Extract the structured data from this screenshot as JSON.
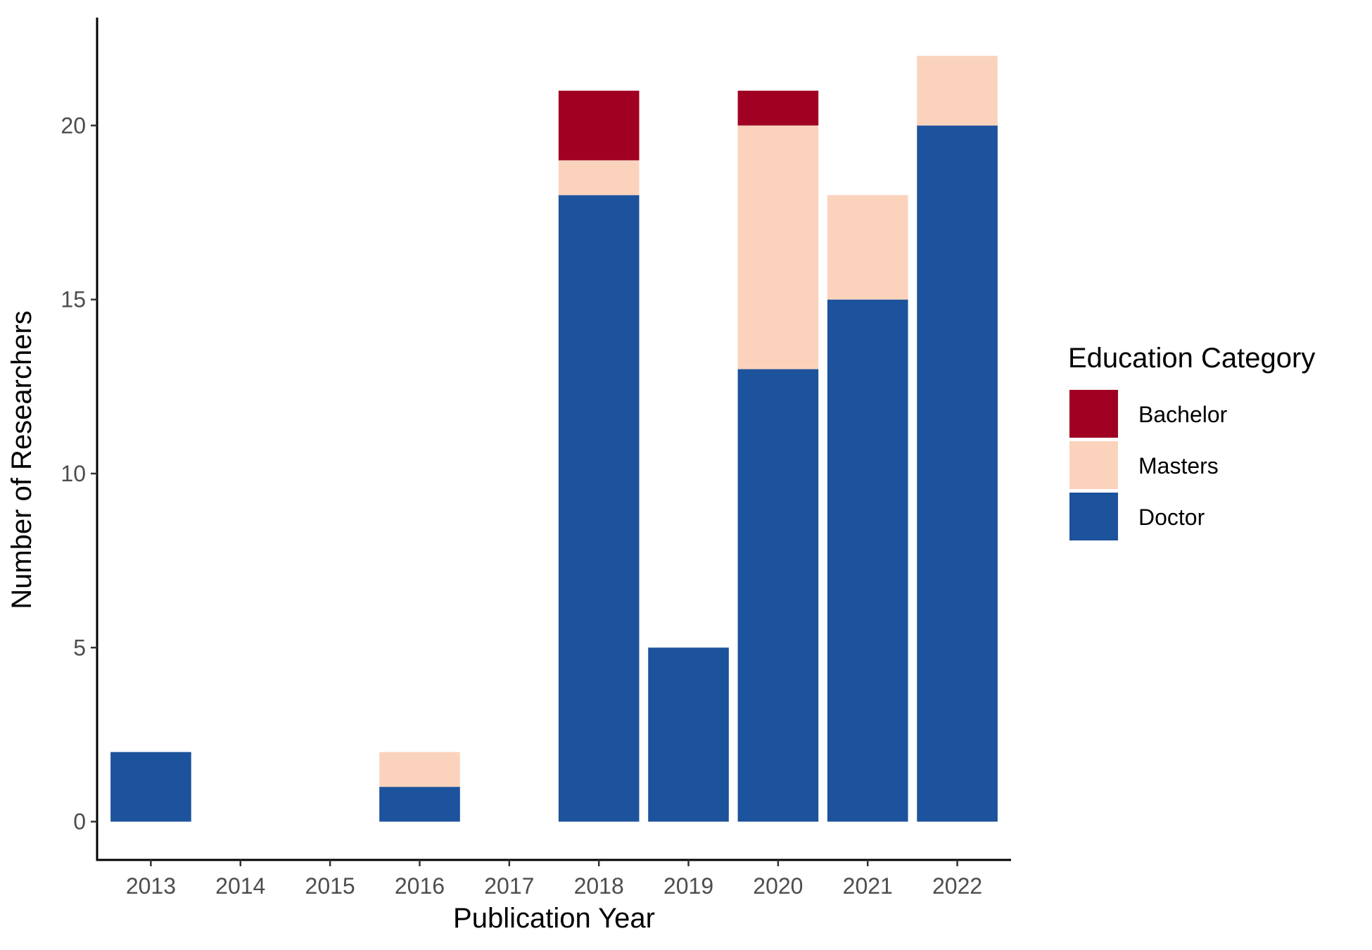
{
  "chart_data": {
    "type": "bar",
    "stacked": true,
    "title": "",
    "xlabel": "Publication Year",
    "ylabel": "Number of Researchers",
    "categories": [
      "2013",
      "2014",
      "2015",
      "2016",
      "2017",
      "2018",
      "2019",
      "2020",
      "2021",
      "2022"
    ],
    "series": [
      {
        "name": "Doctor",
        "color": "#1d529c",
        "values": [
          2,
          0,
          0,
          1,
          0,
          18,
          5,
          13,
          15,
          20
        ]
      },
      {
        "name": "Masters",
        "color": "#fbd3bd",
        "values": [
          0,
          0,
          0,
          1,
          0,
          1,
          0,
          7,
          3,
          2
        ]
      },
      {
        "name": "Bachelor",
        "color": "#a00022",
        "values": [
          0,
          0,
          0,
          0,
          0,
          2,
          0,
          1,
          0,
          0
        ]
      }
    ],
    "ylim": [
      -1.1,
      23.1
    ],
    "yticks": [
      0,
      5,
      10,
      15,
      20
    ],
    "grid": false,
    "legend": {
      "title": "Education Category",
      "position": "right",
      "items": [
        "Bachelor",
        "Masters",
        "Doctor"
      ]
    }
  }
}
